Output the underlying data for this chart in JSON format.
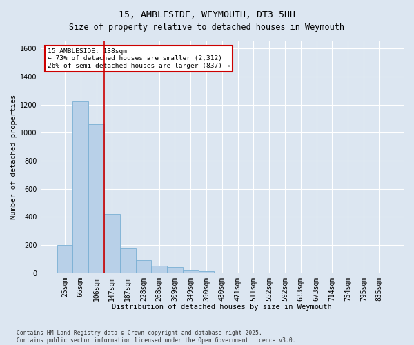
{
  "title": "15, AMBLESIDE, WEYMOUTH, DT3 5HH",
  "subtitle": "Size of property relative to detached houses in Weymouth",
  "xlabel": "Distribution of detached houses by size in Weymouth",
  "ylabel": "Number of detached properties",
  "bar_labels": [
    "25sqm",
    "66sqm",
    "106sqm",
    "147sqm",
    "187sqm",
    "228sqm",
    "268sqm",
    "309sqm",
    "349sqm",
    "390sqm",
    "430sqm",
    "471sqm",
    "511sqm",
    "552sqm",
    "592sqm",
    "633sqm",
    "673sqm",
    "714sqm",
    "754sqm",
    "795sqm",
    "835sqm"
  ],
  "bar_values": [
    200,
    1220,
    1060,
    420,
    175,
    90,
    55,
    45,
    20,
    15,
    0,
    0,
    0,
    0,
    0,
    0,
    0,
    0,
    0,
    0,
    0
  ],
  "bar_color": "#b8d0e8",
  "bar_edge_color": "#7aafd4",
  "background_color": "#dce6f1",
  "plot_bg_color": "#dce6f1",
  "grid_color": "#ffffff",
  "ylim": [
    0,
    1650
  ],
  "yticks": [
    0,
    200,
    400,
    600,
    800,
    1000,
    1200,
    1400,
    1600
  ],
  "red_line_x": 2.5,
  "red_line_color": "#cc0000",
  "annotation_title": "15 AMBLESIDE: 138sqm",
  "annotation_line1": "← 73% of detached houses are smaller (2,312)",
  "annotation_line2": "26% of semi-detached houses are larger (837) →",
  "annotation_box_color": "#ffffff",
  "annotation_border_color": "#cc0000",
  "footnote1": "Contains HM Land Registry data © Crown copyright and database right 2025.",
  "footnote2": "Contains public sector information licensed under the Open Government Licence v3.0.",
  "title_fontsize": 9.5,
  "subtitle_fontsize": 8.5,
  "axis_label_fontsize": 7.5,
  "tick_fontsize": 7,
  "annotation_fontsize": 6.8,
  "footnote_fontsize": 5.8
}
